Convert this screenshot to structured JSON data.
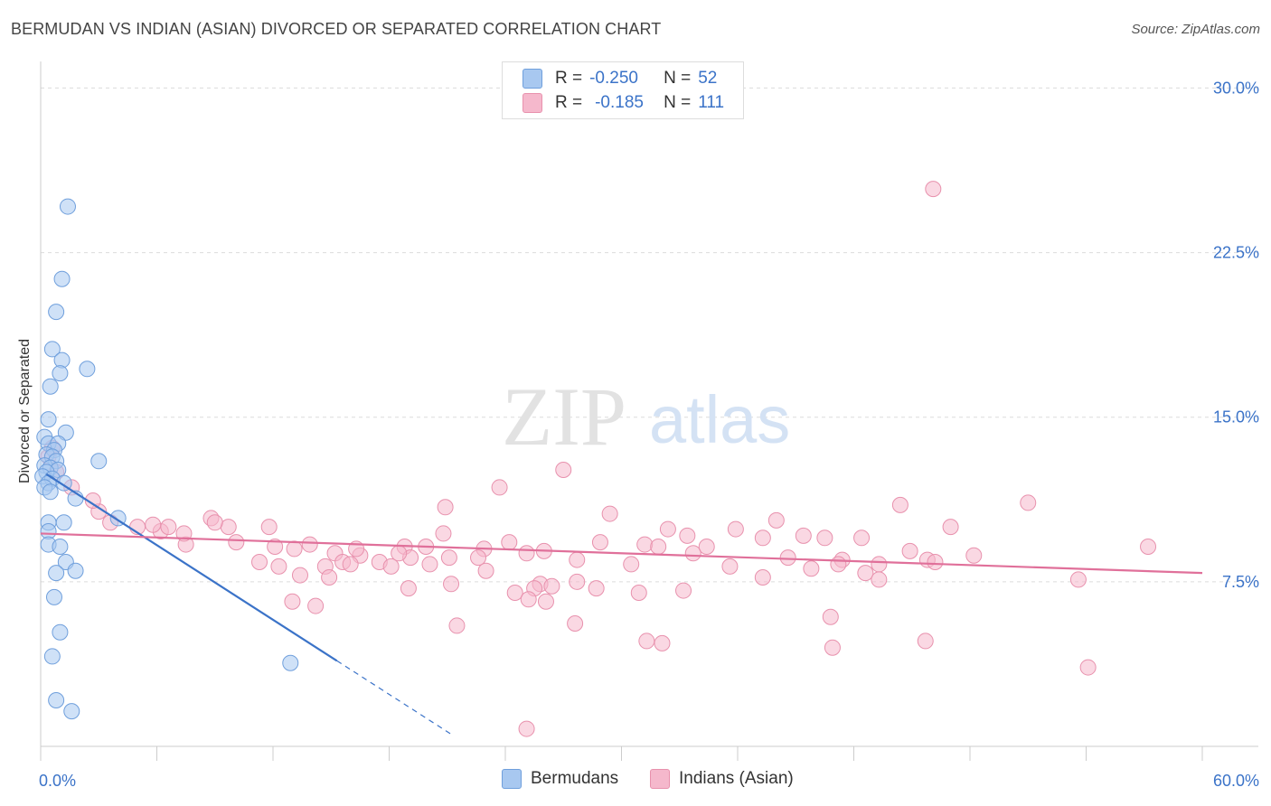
{
  "title": "BERMUDAN VS INDIAN (ASIAN) DIVORCED OR SEPARATED CORRELATION CHART",
  "source": "Source: ZipAtlas.com",
  "watermark": {
    "zip": "ZIP",
    "atlas": "atlas"
  },
  "legend": {
    "r_label": "R =",
    "n_label": "N =",
    "rows": [
      {
        "r": "-0.250",
        "n": "52",
        "color": "#a8c8f0"
      },
      {
        "r": "-0.185",
        "n": "111",
        "color": "#f5b8cc"
      }
    ]
  },
  "bottom_legend": [
    "Bermudans",
    "Indians (Asian)"
  ],
  "chart_data": {
    "type": "scatter",
    "title": "BERMUDAN VS INDIAN (ASIAN) DIVORCED OR SEPARATED CORRELATION CHART",
    "xlabel": "",
    "ylabel": "Divorced or Separated",
    "xlim": [
      0,
      60
    ],
    "ylim": [
      0,
      30.8
    ],
    "x_tick_labels": [
      "0.0%",
      "60.0%"
    ],
    "y_ticks": [
      7.5,
      15.0,
      22.5,
      30.0
    ],
    "y_tick_labels": [
      "7.5%",
      "15.0%",
      "22.5%",
      "30.0%"
    ],
    "grid": true,
    "legend_placement": "top-center",
    "colors": {
      "blue_point": "#a8c8f0",
      "blue_edge": "#6f9fdc",
      "blue_line": "#3b73c8",
      "pink_point": "#f5b8cc",
      "pink_edge": "#e891ad",
      "pink_line": "#e0709a",
      "axis_label": "#3b73c8"
    },
    "series": [
      {
        "name": "Bermudans",
        "points": [
          [
            1.4,
            24.6
          ],
          [
            1.1,
            21.3
          ],
          [
            0.8,
            19.8
          ],
          [
            0.6,
            18.1
          ],
          [
            1.1,
            17.6
          ],
          [
            2.4,
            17.2
          ],
          [
            1.0,
            17.0
          ],
          [
            0.5,
            16.4
          ],
          [
            0.4,
            14.9
          ],
          [
            1.3,
            14.3
          ],
          [
            0.2,
            14.1
          ],
          [
            0.4,
            13.8
          ],
          [
            0.9,
            13.8
          ],
          [
            0.7,
            13.5
          ],
          [
            0.3,
            13.3
          ],
          [
            0.6,
            13.2
          ],
          [
            0.8,
            13.0
          ],
          [
            3.0,
            13.0
          ],
          [
            0.2,
            12.8
          ],
          [
            0.5,
            12.7
          ],
          [
            0.9,
            12.6
          ],
          [
            0.3,
            12.5
          ],
          [
            0.1,
            12.3
          ],
          [
            0.6,
            12.2
          ],
          [
            0.4,
            12.0
          ],
          [
            1.2,
            12.0
          ],
          [
            0.2,
            11.8
          ],
          [
            0.5,
            11.6
          ],
          [
            1.8,
            11.3
          ],
          [
            4.0,
            10.4
          ],
          [
            0.4,
            10.2
          ],
          [
            1.2,
            10.2
          ],
          [
            0.4,
            9.8
          ],
          [
            0.4,
            9.2
          ],
          [
            1.0,
            9.1
          ],
          [
            1.3,
            8.4
          ],
          [
            1.8,
            8.0
          ],
          [
            0.8,
            7.9
          ],
          [
            0.7,
            6.8
          ],
          [
            1.0,
            5.2
          ],
          [
            0.6,
            4.1
          ],
          [
            12.9,
            3.8
          ],
          [
            0.8,
            2.1
          ],
          [
            1.6,
            1.6
          ]
        ]
      },
      {
        "name": "Indians (Asian)",
        "points": [
          [
            46.1,
            25.4
          ],
          [
            27.0,
            12.6
          ],
          [
            23.7,
            11.8
          ],
          [
            51.0,
            11.1
          ],
          [
            44.4,
            11.0
          ],
          [
            20.9,
            10.9
          ],
          [
            29.4,
            10.6
          ],
          [
            38.0,
            10.3
          ],
          [
            47.0,
            10.0
          ],
          [
            32.4,
            9.9
          ],
          [
            35.9,
            9.9
          ],
          [
            20.8,
            9.7
          ],
          [
            24.2,
            9.3
          ],
          [
            31.2,
            9.2
          ],
          [
            37.3,
            9.5
          ],
          [
            39.4,
            9.6
          ],
          [
            42.4,
            9.5
          ],
          [
            33.4,
            9.6
          ],
          [
            28.9,
            9.3
          ],
          [
            40.5,
            9.5
          ],
          [
            31.9,
            9.1
          ],
          [
            44.9,
            8.9
          ],
          [
            48.2,
            8.7
          ],
          [
            18.8,
            9.1
          ],
          [
            22.9,
            9.0
          ],
          [
            26.0,
            8.9
          ],
          [
            33.7,
            8.8
          ],
          [
            34.4,
            9.1
          ],
          [
            38.6,
            8.6
          ],
          [
            41.4,
            8.5
          ],
          [
            43.3,
            8.3
          ],
          [
            45.8,
            8.5
          ],
          [
            20.1,
            8.3
          ],
          [
            22.6,
            8.6
          ],
          [
            25.1,
            8.8
          ],
          [
            27.7,
            8.5
          ],
          [
            30.5,
            8.3
          ],
          [
            35.6,
            8.2
          ],
          [
            39.8,
            8.1
          ],
          [
            42.6,
            7.9
          ],
          [
            14.7,
            8.2
          ],
          [
            16.5,
            8.7
          ],
          [
            17.5,
            8.4
          ],
          [
            19.1,
            8.6
          ],
          [
            16.3,
            9.0
          ],
          [
            15.2,
            8.8
          ],
          [
            11.3,
            8.4
          ],
          [
            10.1,
            9.3
          ],
          [
            9.7,
            10.0
          ],
          [
            8.8,
            10.4
          ],
          [
            7.5,
            9.2
          ],
          [
            6.2,
            9.8
          ],
          [
            5.0,
            10.0
          ],
          [
            3.6,
            10.2
          ],
          [
            3.0,
            10.7
          ],
          [
            2.7,
            11.2
          ],
          [
            1.6,
            11.8
          ],
          [
            0.8,
            12.5
          ],
          [
            0.4,
            13.2
          ],
          [
            0.6,
            13.6
          ],
          [
            12.1,
            9.1
          ],
          [
            13.1,
            9.0
          ],
          [
            11.8,
            10.0
          ],
          [
            9.0,
            10.2
          ],
          [
            7.4,
            9.7
          ],
          [
            6.6,
            10.0
          ],
          [
            5.8,
            10.1
          ],
          [
            13.9,
            9.2
          ],
          [
            15.6,
            8.4
          ],
          [
            18.1,
            8.2
          ],
          [
            12.3,
            8.2
          ],
          [
            13.4,
            7.8
          ],
          [
            14.9,
            7.7
          ],
          [
            16.0,
            8.3
          ],
          [
            18.5,
            8.8
          ],
          [
            19.9,
            9.1
          ],
          [
            21.1,
            8.6
          ],
          [
            23.0,
            8.0
          ],
          [
            25.8,
            7.4
          ],
          [
            26.4,
            7.3
          ],
          [
            27.7,
            7.5
          ],
          [
            28.7,
            7.2
          ],
          [
            30.9,
            7.0
          ],
          [
            33.2,
            7.1
          ],
          [
            37.3,
            7.7
          ],
          [
            41.2,
            8.3
          ],
          [
            43.3,
            7.6
          ],
          [
            46.2,
            8.4
          ],
          [
            57.2,
            9.1
          ],
          [
            53.6,
            7.6
          ],
          [
            19.0,
            7.2
          ],
          [
            21.2,
            7.4
          ],
          [
            21.5,
            5.5
          ],
          [
            24.5,
            7.0
          ],
          [
            25.5,
            7.2
          ],
          [
            14.2,
            6.4
          ],
          [
            13.0,
            6.6
          ],
          [
            25.2,
            6.7
          ],
          [
            26.1,
            6.6
          ],
          [
            27.6,
            5.6
          ],
          [
            32.1,
            4.7
          ],
          [
            31.3,
            4.8
          ],
          [
            40.8,
            5.9
          ],
          [
            40.9,
            4.5
          ],
          [
            45.7,
            4.8
          ],
          [
            54.1,
            3.6
          ],
          [
            25.1,
            0.8
          ]
        ]
      }
    ],
    "trend_lines": [
      {
        "series": "Bermudans",
        "solid_from": [
          0.3,
          12.4
        ],
        "solid_to": [
          15.3,
          3.9
        ],
        "dashed_to": [
          21.3,
          0.5
        ]
      },
      {
        "series": "Indians (Asian)",
        "from": [
          0.0,
          9.7
        ],
        "to": [
          60.0,
          7.9
        ]
      }
    ]
  }
}
